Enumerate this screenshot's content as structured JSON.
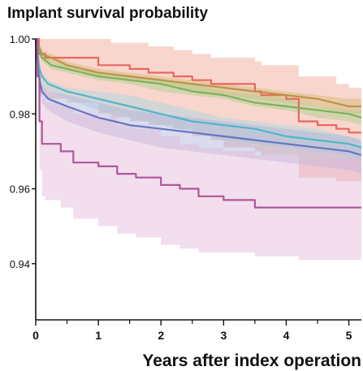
{
  "chart_data": {
    "type": "line",
    "title": "Implant survival probability",
    "xlabel": "Years after index operation",
    "ylabel": "",
    "xlim": [
      0,
      5.2
    ],
    "ylim": [
      0.925,
      1.0
    ],
    "x_ticks": [
      "0",
      "1",
      "2",
      "3",
      "4",
      "5"
    ],
    "x_tick_values": [
      0,
      1,
      2,
      3,
      4,
      5
    ],
    "y_ticks": [
      "1.00",
      "0.98",
      "0.96",
      "0.94"
    ],
    "y_tick_values": [
      1.0,
      0.98,
      0.96,
      0.94
    ],
    "grid": false,
    "legend": "none",
    "series": [
      {
        "color": "#e8675f",
        "band_color": "#f0a590",
        "style": "step",
        "x": [
          0,
          0.05,
          0.15,
          0.5,
          1.0,
          1.2,
          1.5,
          1.8,
          2.2,
          2.5,
          2.8,
          3.0,
          3.5,
          3.6,
          4.0,
          4.2,
          4.5,
          4.8,
          5.0,
          5.2
        ],
        "y": [
          1.0,
          0.996,
          0.995,
          0.995,
          0.993,
          0.993,
          0.992,
          0.991,
          0.99,
          0.989,
          0.988,
          0.988,
          0.986,
          0.985,
          0.984,
          0.978,
          0.977,
          0.976,
          0.975,
          0.975
        ],
        "lower": [
          1.0,
          0.985,
          0.984,
          0.983,
          0.98,
          0.979,
          0.978,
          0.977,
          0.976,
          0.974,
          0.973,
          0.971,
          0.97,
          0.969,
          0.969,
          0.963,
          0.963,
          0.962,
          0.962,
          0.962
        ],
        "upper": [
          1.0,
          1.0,
          1.0,
          1.0,
          1.0,
          0.999,
          0.999,
          0.998,
          0.997,
          0.996,
          0.995,
          0.995,
          0.994,
          0.993,
          0.993,
          0.99,
          0.99,
          0.988,
          0.987,
          0.987
        ]
      },
      {
        "color": "#b8954a",
        "band_color": "#d4b870",
        "style": "line",
        "x": [
          0,
          0.05,
          0.1,
          0.25,
          0.5,
          1.0,
          1.5,
          2.0,
          2.5,
          3.0,
          3.5,
          4.0,
          4.5,
          5.0,
          5.2
        ],
        "y": [
          1.0,
          0.998,
          0.996,
          0.995,
          0.993,
          0.991,
          0.99,
          0.989,
          0.988,
          0.987,
          0.986,
          0.985,
          0.984,
          0.982,
          0.982
        ],
        "lower": [
          1.0,
          0.997,
          0.995,
          0.994,
          0.992,
          0.99,
          0.989,
          0.988,
          0.986,
          0.985,
          0.984,
          0.983,
          0.982,
          0.98,
          0.98
        ],
        "upper": [
          1.0,
          0.999,
          0.997,
          0.996,
          0.994,
          0.992,
          0.991,
          0.99,
          0.989,
          0.988,
          0.987,
          0.986,
          0.985,
          0.984,
          0.984
        ]
      },
      {
        "color": "#7cb25a",
        "band_color": "#a8d08a",
        "style": "line",
        "x": [
          0,
          0.05,
          0.1,
          0.25,
          0.5,
          1.0,
          1.5,
          2.0,
          2.5,
          3.0,
          3.5,
          4.0,
          4.5,
          5.0,
          5.2
        ],
        "y": [
          1.0,
          0.997,
          0.995,
          0.993,
          0.992,
          0.99,
          0.989,
          0.988,
          0.986,
          0.985,
          0.983,
          0.982,
          0.981,
          0.98,
          0.979
        ],
        "lower": [
          1.0,
          0.996,
          0.994,
          0.992,
          0.991,
          0.989,
          0.988,
          0.986,
          0.985,
          0.984,
          0.982,
          0.981,
          0.979,
          0.978,
          0.977
        ],
        "upper": [
          1.0,
          0.998,
          0.996,
          0.994,
          0.993,
          0.991,
          0.99,
          0.989,
          0.988,
          0.986,
          0.985,
          0.984,
          0.982,
          0.981,
          0.981
        ]
      },
      {
        "color": "#4fb6c9",
        "band_color": "#a6d8e2",
        "style": "line",
        "x": [
          0,
          0.03,
          0.06,
          0.1,
          0.2,
          0.5,
          1.0,
          1.5,
          2.0,
          2.5,
          3.0,
          3.5,
          4.0,
          4.5,
          5.0,
          5.2
        ],
        "y": [
          1.0,
          0.996,
          0.992,
          0.99,
          0.988,
          0.986,
          0.984,
          0.982,
          0.98,
          0.978,
          0.977,
          0.976,
          0.974,
          0.973,
          0.972,
          0.971
        ],
        "lower": [
          1.0,
          0.995,
          0.99,
          0.988,
          0.986,
          0.984,
          0.981,
          0.979,
          0.977,
          0.975,
          0.973,
          0.972,
          0.971,
          0.97,
          0.969,
          0.968
        ],
        "upper": [
          1.0,
          0.997,
          0.993,
          0.991,
          0.989,
          0.987,
          0.986,
          0.985,
          0.983,
          0.981,
          0.979,
          0.978,
          0.977,
          0.976,
          0.974,
          0.973
        ]
      },
      {
        "color": "#6476c2",
        "band_color": "#aab2dc",
        "style": "line",
        "x": [
          0,
          0.03,
          0.06,
          0.1,
          0.2,
          0.5,
          1.0,
          1.5,
          2.0,
          2.5,
          3.0,
          3.5,
          4.0,
          4.5,
          5.0,
          5.2
        ],
        "y": [
          1.0,
          0.993,
          0.989,
          0.986,
          0.984,
          0.982,
          0.979,
          0.977,
          0.976,
          0.975,
          0.974,
          0.973,
          0.972,
          0.971,
          0.97,
          0.969
        ],
        "lower": [
          1.0,
          0.991,
          0.986,
          0.983,
          0.981,
          0.978,
          0.975,
          0.973,
          0.971,
          0.97,
          0.969,
          0.968,
          0.967,
          0.966,
          0.965,
          0.964
        ],
        "upper": [
          1.0,
          0.995,
          0.991,
          0.988,
          0.986,
          0.985,
          0.983,
          0.981,
          0.98,
          0.979,
          0.978,
          0.977,
          0.976,
          0.975,
          0.974,
          0.973
        ]
      },
      {
        "color": "#b0569a",
        "band_color": "#e2b6d8",
        "style": "step",
        "x": [
          0,
          0.03,
          0.06,
          0.1,
          0.15,
          0.4,
          0.6,
          1.0,
          1.3,
          1.6,
          2.0,
          2.3,
          2.6,
          3.0,
          3.5,
          4.2,
          5.2
        ],
        "y": [
          1.0,
          0.99,
          0.978,
          0.972,
          0.972,
          0.97,
          0.967,
          0.966,
          0.964,
          0.963,
          0.961,
          0.96,
          0.958,
          0.957,
          0.955,
          0.955,
          0.955
        ],
        "lower": [
          1.0,
          0.978,
          0.965,
          0.958,
          0.957,
          0.955,
          0.952,
          0.95,
          0.948,
          0.947,
          0.945,
          0.944,
          0.943,
          0.943,
          0.942,
          0.941,
          0.941
        ],
        "upper": [
          1.0,
          0.998,
          0.988,
          0.984,
          0.983,
          0.982,
          0.98,
          0.979,
          0.977,
          0.976,
          0.974,
          0.972,
          0.971,
          0.97,
          0.969,
          0.968,
          0.968
        ]
      }
    ]
  }
}
